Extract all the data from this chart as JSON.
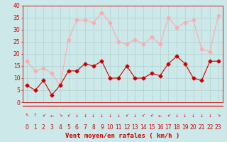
{
  "x": [
    0,
    1,
    2,
    3,
    4,
    5,
    6,
    7,
    8,
    9,
    10,
    11,
    12,
    13,
    14,
    15,
    16,
    17,
    18,
    19,
    20,
    21,
    22,
    23
  ],
  "wind_mean": [
    7,
    5,
    9,
    3,
    7,
    13,
    13,
    16,
    15,
    17,
    10,
    10,
    15,
    10,
    10,
    12,
    11,
    16,
    19,
    16,
    10,
    9,
    17,
    17
  ],
  "wind_gust": [
    17,
    13,
    14,
    12,
    7,
    26,
    34,
    34,
    33,
    37,
    33,
    25,
    24,
    26,
    24,
    27,
    24,
    35,
    31,
    33,
    34,
    22,
    21,
    36
  ],
  "mean_color": "#cc0000",
  "gust_color": "#ffaaaa",
  "bg_color": "#cce8e8",
  "grid_color": "#aacccc",
  "xlabel": "Vent moyen/en rafales ( km/h )",
  "xlabel_color": "#cc0000",
  "ylim": [
    0,
    40
  ],
  "yticks": [
    0,
    5,
    10,
    15,
    20,
    25,
    30,
    35,
    40
  ],
  "marker_size": 2.5,
  "linewidth": 0.8,
  "tick_fontsize": 5.5,
  "xlabel_fontsize": 6.5
}
